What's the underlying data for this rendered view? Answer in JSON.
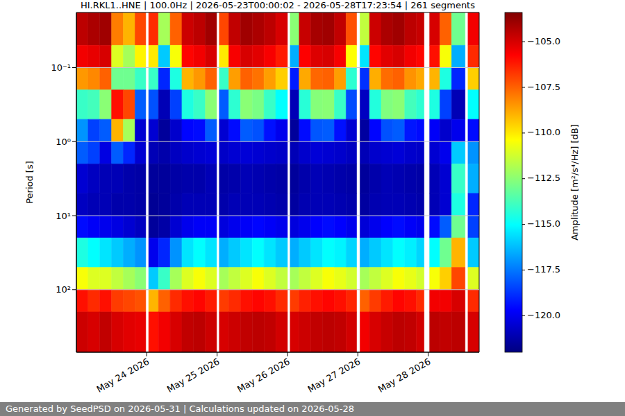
{
  "chart_data": {
    "type": "heatmap",
    "title": "HI.RKL1..HNE | 100.0Hz | 2026-05-23T00:00:02 - 2026-05-28T17:23:54 | 261 segments",
    "ylabel": "Period [s]",
    "footer": "Generated by SeedPSD on 2026-05-31 | Calculations updated on 2026-05-28",
    "log": "y",
    "grid": "y",
    "xlim": [
      "2026-05-23T00:00:02",
      "2026-05-28T17:23:54"
    ],
    "xticks": [
      {
        "value": "2026-05-24T00:00:00",
        "label": "May 24 2026"
      },
      {
        "value": "2026-05-25T00:00:00",
        "label": "May 25 2026"
      },
      {
        "value": "2026-05-26T00:00:00",
        "label": "May 26 2026"
      },
      {
        "value": "2026-05-27T00:00:00",
        "label": "May 27 2026"
      },
      {
        "value": "2026-05-28T00:00:00",
        "label": "May 28 2026"
      }
    ],
    "ylim": [
      0.018,
      700
    ],
    "yticks": [
      {
        "value": 0.1,
        "label": "10⁻¹"
      },
      {
        "value": 1,
        "label": "10⁰"
      },
      {
        "value": 10,
        "label": "10¹"
      },
      {
        "value": 100,
        "label": "10²"
      }
    ],
    "x_edges": [
      "2026-05-23T00:00:02",
      "2026-05-23T04:00:00",
      "2026-05-23T08:00:00",
      "2026-05-23T12:00:00",
      "2026-05-23T16:00:00",
      "2026-05-23T20:00:00",
      "2026-05-23T23:40:00",
      "2026-05-24T00:40:00",
      "2026-05-24T04:00:00",
      "2026-05-24T08:00:00",
      "2026-05-24T12:00:00",
      "2026-05-24T16:00:00",
      "2026-05-24T20:00:00",
      "2026-05-24T23:50:00",
      "2026-05-25T00:45:00",
      "2026-05-25T04:00:00",
      "2026-05-25T08:00:00",
      "2026-05-25T12:00:00",
      "2026-05-25T16:00:00",
      "2026-05-25T20:00:00",
      "2026-05-26T00:00:00",
      "2026-05-26T00:55:00",
      "2026-05-26T04:00:00",
      "2026-05-26T08:00:00",
      "2026-05-26T12:00:00",
      "2026-05-26T16:00:00",
      "2026-05-26T20:00:00",
      "2026-05-26T23:35:00",
      "2026-05-27T00:45:00",
      "2026-05-27T04:00:00",
      "2026-05-27T08:00:00",
      "2026-05-27T12:00:00",
      "2026-05-27T16:00:00",
      "2026-05-27T20:00:00",
      "2026-05-27T22:35:00",
      "2026-05-28T00:30:00",
      "2026-05-28T04:00:00",
      "2026-05-28T08:00:00",
      "2026-05-28T12:35:00",
      "2026-05-28T13:35:00",
      "2026-05-28T17:23:54"
    ],
    "y_edges": [
      0.018,
      0.05,
      0.1,
      0.2,
      0.5,
      1,
      2,
      5,
      10,
      20,
      50,
      100,
      200,
      700
    ],
    "values": [
      [
        -104.5,
        -104.2,
        -104,
        -108,
        -109,
        -107,
        null,
        -106.5,
        -112,
        -107.5,
        -104.8,
        -104.5,
        -104,
        null,
        -107,
        -104.6,
        -104,
        -104.2,
        -104.5,
        -105,
        null,
        -112.5,
        -104.7,
        -104.1,
        -104,
        -104.6,
        -107.2,
        null,
        -111.5,
        -104.8,
        -104.2,
        -104,
        -104.5,
        -104.7,
        null,
        -105,
        -107.5,
        -113,
        null,
        -105.5
      ],
      [
        -105.5,
        -105.3,
        -105,
        -111,
        -112,
        -110.2,
        null,
        -110,
        -116,
        -110.5,
        -105.8,
        -105.5,
        -105,
        null,
        -110,
        -105.6,
        -105,
        -105.2,
        -105.6,
        -106.2,
        null,
        -116.5,
        -105.7,
        -105.1,
        -105,
        -105.6,
        -110.4,
        null,
        -115.5,
        -105.8,
        -105.2,
        -105,
        -105.5,
        -105.8,
        null,
        -106,
        -110.5,
        -116.5,
        null,
        -106.5
      ],
      [
        -108.5,
        -108.2,
        -107.5,
        -113,
        -113,
        -114,
        null,
        -114,
        -119,
        -114.5,
        -109,
        -108.5,
        -107.5,
        null,
        -114,
        -108.6,
        -107.5,
        -107.8,
        -108.6,
        -109.5,
        null,
        -119.2,
        -108.8,
        -107.6,
        -107.5,
        -108.6,
        -114.2,
        null,
        -118.8,
        -108.9,
        -107.7,
        -107.5,
        -108.4,
        -108.8,
        null,
        -109,
        -114.5,
        -119,
        null,
        -109.5
      ],
      [
        -114,
        -113.8,
        -112.5,
        -106,
        -107,
        -118,
        null,
        -118.2,
        -121,
        -118.5,
        -114.5,
        -114,
        -112.5,
        null,
        -118,
        -114.2,
        -112.5,
        -112.8,
        -114,
        -115,
        null,
        -121,
        -114.3,
        -112.6,
        -112.5,
        -114,
        -118.3,
        null,
        -120.8,
        -114.4,
        -112.7,
        -112.5,
        -113.8,
        -114.2,
        null,
        -114.5,
        -118.5,
        -121,
        null,
        -115
      ],
      [
        -117,
        -118.5,
        -118,
        -109,
        -112,
        -120.5,
        null,
        -120.5,
        -121.5,
        -120.6,
        -119.6,
        -119.5,
        -118,
        null,
        -120.5,
        -119.5,
        -118,
        -118.2,
        -119.4,
        -120,
        null,
        -121.5,
        -119.5,
        -118.1,
        -118,
        -119.4,
        -120.5,
        null,
        -121.4,
        -119.6,
        -118.2,
        -118,
        -119.3,
        -119.5,
        null,
        -119.8,
        -120.6,
        -120,
        null,
        -119.5
      ],
      [
        -118,
        -118.5,
        -120.2,
        -118,
        -119,
        -120.5,
        null,
        -121,
        -121.2,
        -120.8,
        -120.6,
        -120.5,
        -120.4,
        null,
        -120.7,
        -120.5,
        -120.4,
        -120.5,
        -120.6,
        -120.7,
        null,
        -121,
        -120.6,
        -120.4,
        -120.5,
        -120.6,
        -120.8,
        null,
        -121,
        -120.6,
        -120.5,
        -120.4,
        -120.6,
        -120.7,
        null,
        -120.5,
        -120,
        -116,
        null,
        -117
      ],
      [
        -120.5,
        -120.8,
        -121,
        -121,
        -121.2,
        -121.3,
        null,
        -121.5,
        -121.5,
        -121.3,
        -121.2,
        -121.2,
        -121,
        null,
        -121.3,
        -121.2,
        -121,
        -121.1,
        -121.2,
        -121.3,
        null,
        -121.5,
        -121.2,
        -121,
        -121.1,
        -121.2,
        -121.3,
        null,
        -121.5,
        -121.2,
        -121,
        -121.1,
        -121.2,
        -121.3,
        null,
        -121,
        -120.5,
        -114,
        null,
        -116.5
      ],
      [
        -120.8,
        -121,
        -121,
        -121.2,
        -121.2,
        -121.3,
        null,
        -121.6,
        -121.5,
        -121.2,
        -121,
        -121,
        -121,
        null,
        -121.2,
        -121,
        -121,
        -121,
        -121.1,
        -121.2,
        null,
        -121.4,
        -121.1,
        -121,
        -121,
        -121.1,
        -121.2,
        null,
        -121.4,
        -121.1,
        -121,
        -121,
        -121.1,
        -121.2,
        null,
        -121,
        -120.5,
        -114.5,
        null,
        -119
      ],
      [
        -119.5,
        -119.8,
        -120,
        -120.2,
        -120.5,
        -120.8,
        null,
        -121.5,
        -121.3,
        -120.5,
        -120,
        -119.8,
        -119.8,
        null,
        -120.3,
        -120,
        -119.8,
        -119.6,
        -119.8,
        -120,
        null,
        -120.3,
        -120,
        -119.7,
        -119.5,
        -119.7,
        -120,
        null,
        -120.4,
        -120,
        -119.7,
        -119.5,
        -119.8,
        -120,
        null,
        -119.5,
        -118,
        -113,
        null,
        -118.5
      ],
      [
        -114.5,
        -115,
        -115.5,
        -116,
        -116.5,
        -117,
        null,
        -120,
        -119,
        -117,
        -115.5,
        -115,
        -115.5,
        null,
        -116.5,
        -116,
        -115.5,
        -115,
        -115.5,
        -116,
        null,
        -116.5,
        -116,
        -115.5,
        -115,
        -115.2,
        -115.8,
        null,
        -116.5,
        -116,
        -115.5,
        -115,
        -115.3,
        -115.8,
        null,
        -115,
        -113,
        -109,
        null,
        -116
      ],
      [
        -110.5,
        -111,
        -111,
        -111.5,
        -112,
        -112.5,
        null,
        -116,
        -114,
        -112,
        -111,
        -110.5,
        -111,
        null,
        -112,
        -111.5,
        -111,
        -110.5,
        -111,
        -111.5,
        null,
        -112,
        -111.5,
        -111,
        -110.5,
        -110.8,
        -111.2,
        null,
        -112,
        -111.5,
        -111,
        -110.5,
        -110.8,
        -111.2,
        null,
        -110.5,
        -109.5,
        -107,
        null,
        -111
      ],
      [
        -106,
        -106.5,
        -106,
        -106.8,
        -107,
        -107.2,
        null,
        -109,
        -107.5,
        -106.5,
        -106,
        -105.8,
        -106.2,
        null,
        -106.8,
        -106.5,
        -106,
        -105.8,
        -106,
        -106.5,
        null,
        -106.8,
        -106.3,
        -106,
        -105.8,
        -106,
        -106.4,
        null,
        -107.5,
        -106.8,
        -106.2,
        -105.8,
        -106,
        -106.5,
        null,
        -105.5,
        -105.5,
        -105,
        null,
        -106.5
      ],
      [
        -104.8,
        -105,
        -104.6,
        -105,
        -105.2,
        -105.3,
        null,
        -106,
        -105.5,
        -105,
        -104.6,
        -104.5,
        -104.8,
        null,
        -105,
        -104.8,
        -104.6,
        -104.5,
        -104.6,
        -104.9,
        null,
        -105,
        -104.8,
        -104.6,
        -104.5,
        -104.6,
        -104.9,
        null,
        -105.5,
        -105,
        -104.7,
        -104.5,
        -104.6,
        -104.9,
        null,
        -104.5,
        -104.6,
        -104.5,
        null,
        -105
      ]
    ],
    "colorbar": {
      "label": "Amplitude [m²/s⁴/Hz] [dB]",
      "range": [
        -122,
        -103.4
      ],
      "ticks": [
        {
          "value": -105,
          "label": "−105.0"
        },
        {
          "value": -107.5,
          "label": "−107.5"
        },
        {
          "value": -110,
          "label": "−110.0"
        },
        {
          "value": -112.5,
          "label": "−112.5"
        },
        {
          "value": -115,
          "label": "−115.0"
        },
        {
          "value": -117.5,
          "label": "−117.5"
        },
        {
          "value": -120,
          "label": "−120.0"
        }
      ]
    }
  }
}
